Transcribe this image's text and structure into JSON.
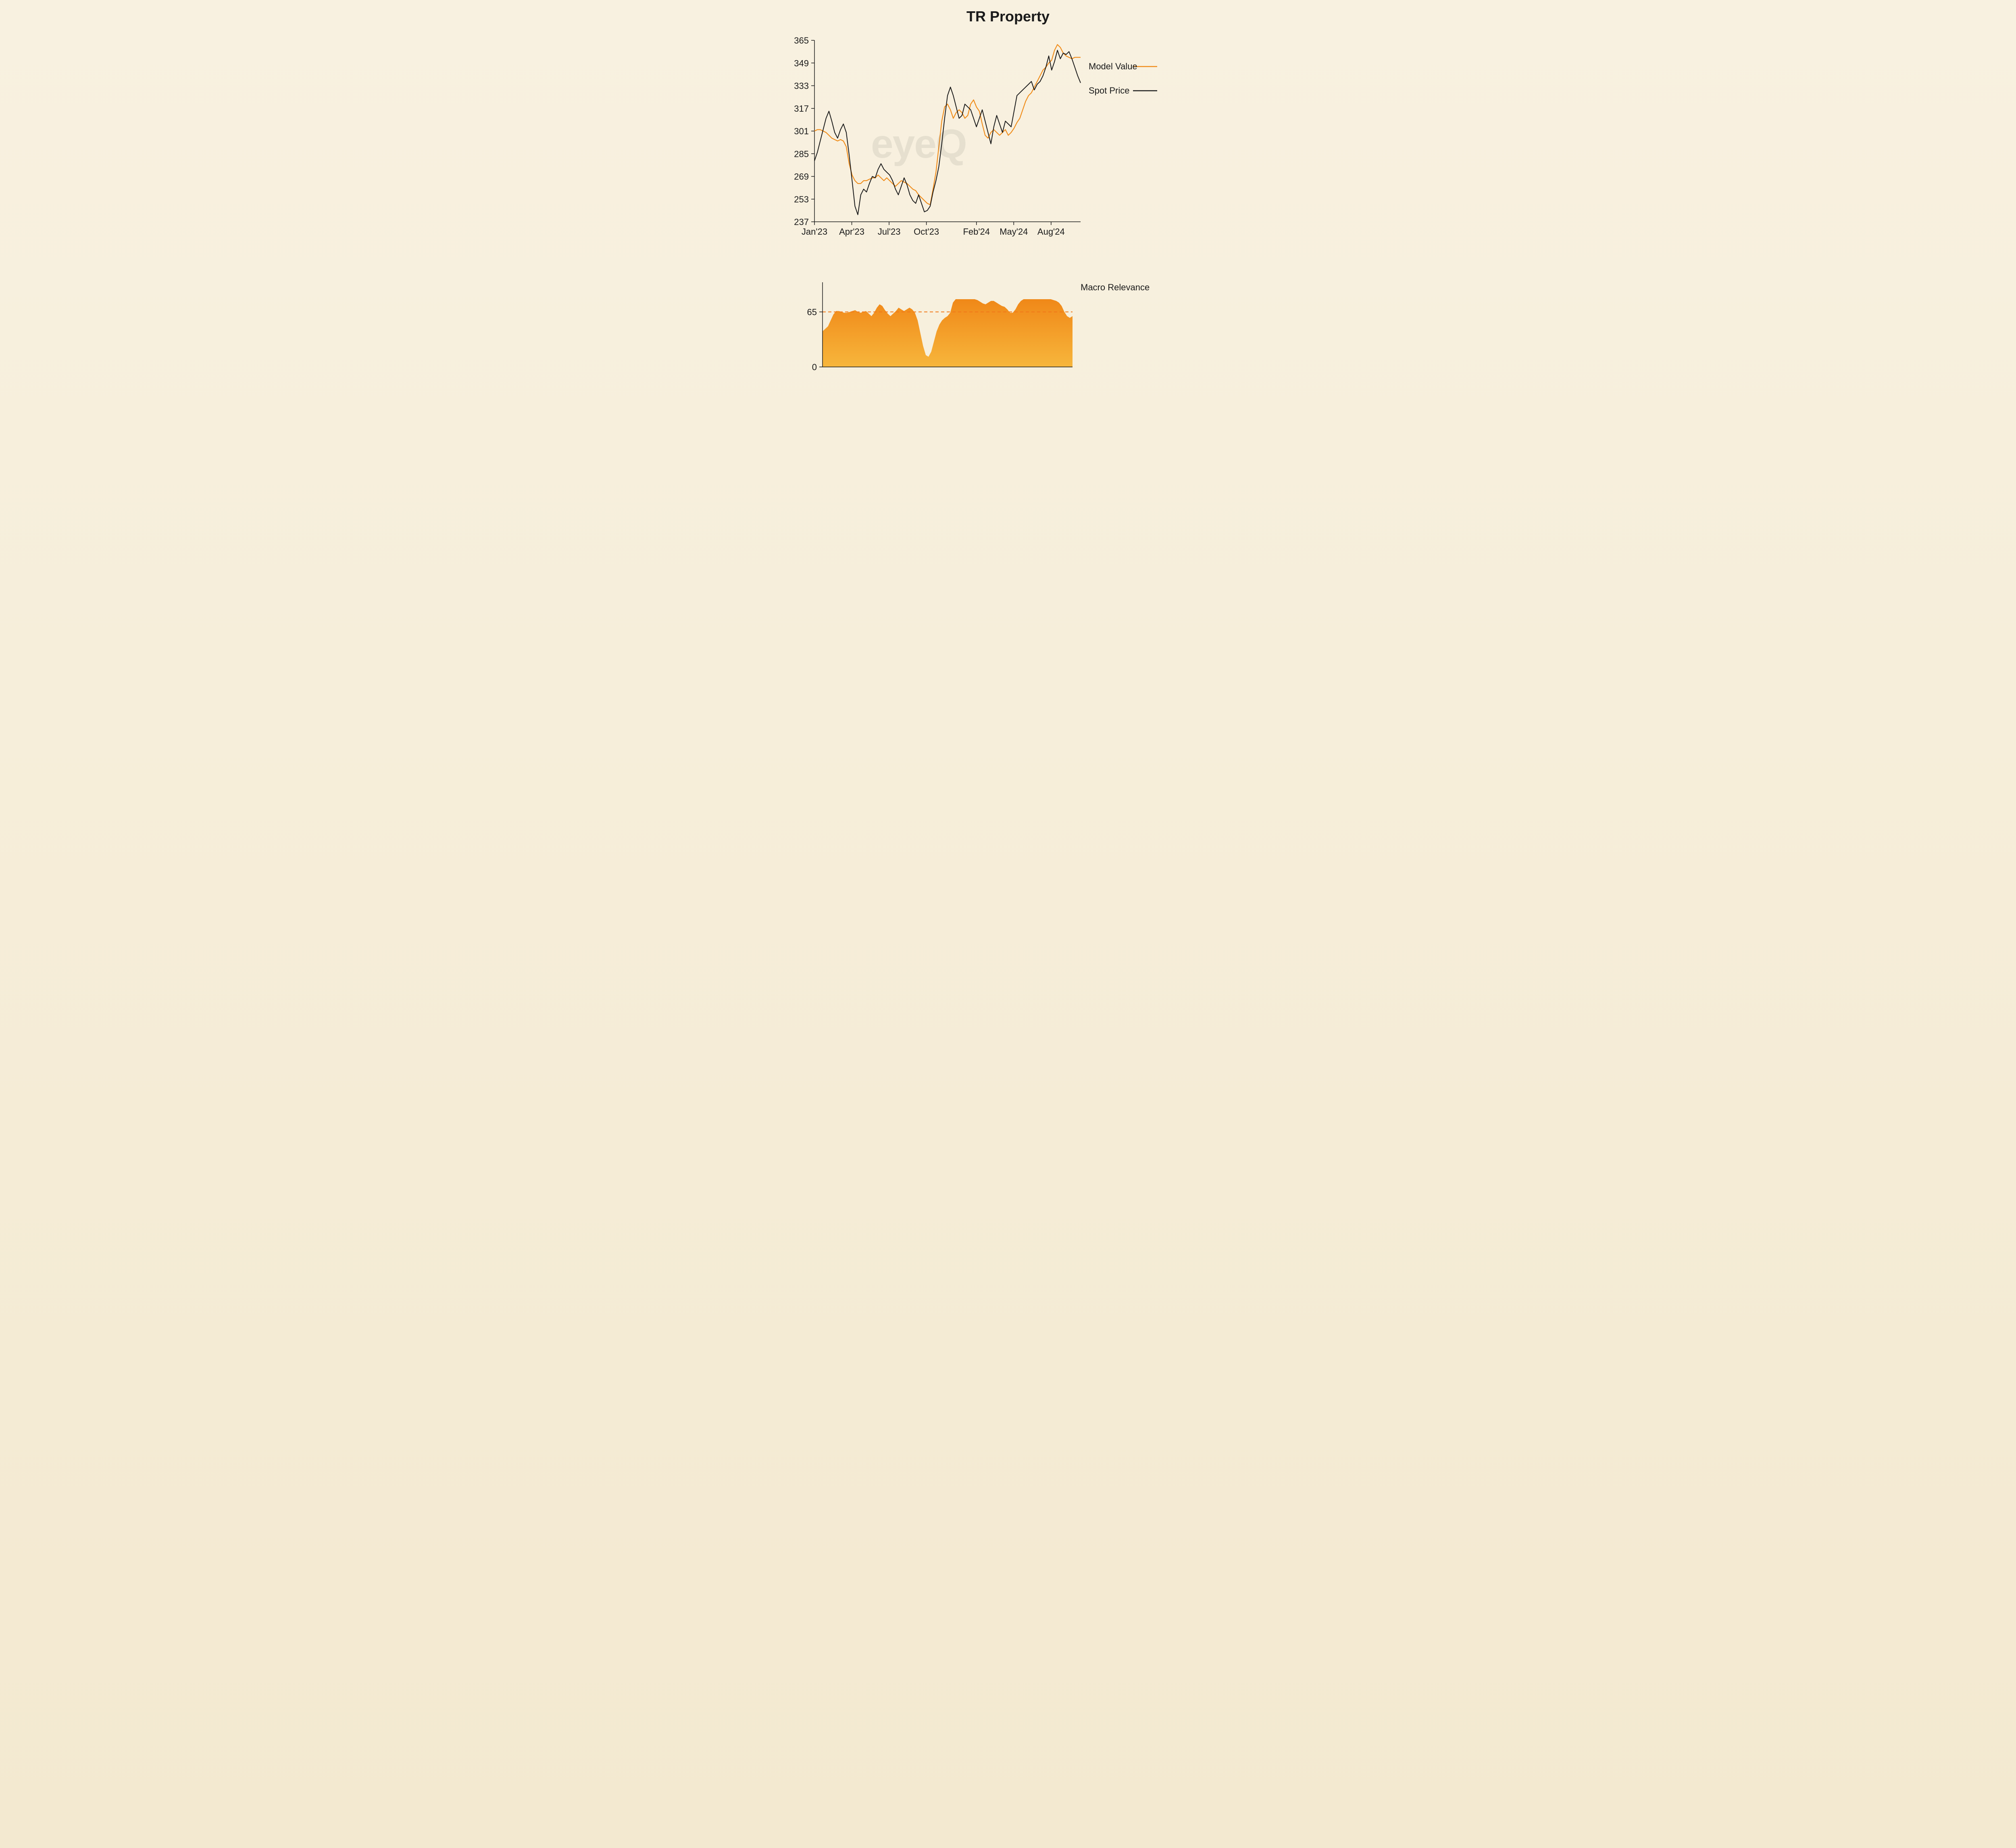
{
  "title": "TR Property",
  "watermark": "eyeQ",
  "background_gradient": [
    "#f8f1e0",
    "#f3e9d0"
  ],
  "legend": {
    "model_value": {
      "label": "Model Value",
      "color": "#f08c1a",
      "line_width": 2.2
    },
    "spot_price": {
      "label": "Spot Price",
      "color": "#1a1a1a",
      "line_width": 2.0
    },
    "macro": {
      "label": "Macro Relevance"
    }
  },
  "main_chart": {
    "type": "line",
    "title_fontsize": 36,
    "label_fontsize": 22,
    "ylim": [
      237,
      365
    ],
    "ytick_labels": [
      "237",
      "253",
      "269",
      "285",
      "301",
      "317",
      "333",
      "349",
      "365"
    ],
    "ytick_values": [
      237,
      253,
      269,
      285,
      301,
      317,
      333,
      349,
      365
    ],
    "xtick_labels": [
      "Jan'23",
      "Apr'23",
      "Jul'23",
      "Oct'23",
      "Feb'24",
      "May'24",
      "Aug'24"
    ],
    "xtick_positions": [
      0,
      12.9,
      25.8,
      38.7,
      56.0,
      68.9,
      81.8
    ],
    "x_count": 93,
    "axis_color": "#1a1a1a",
    "model_value_series": [
      301,
      302,
      302,
      301,
      300,
      298,
      296,
      295,
      294,
      295,
      294,
      290,
      278,
      270,
      266,
      264,
      264,
      266,
      266,
      267,
      268,
      268,
      270,
      268,
      266,
      268,
      266,
      264,
      262,
      264,
      266,
      265,
      264,
      262,
      260,
      259,
      256,
      254,
      252,
      250,
      249,
      260,
      272,
      290,
      308,
      318,
      320,
      316,
      310,
      314,
      316,
      314,
      310,
      312,
      320,
      323,
      318,
      315,
      306,
      298,
      296,
      300,
      302,
      300,
      298,
      300,
      302,
      298,
      300,
      303,
      307,
      310,
      316,
      322,
      326,
      328,
      332,
      336,
      340,
      344,
      346,
      349,
      351,
      358,
      362,
      360,
      356,
      354,
      353,
      352,
      353,
      353,
      353
    ],
    "spot_price_series": [
      280,
      286,
      294,
      302,
      310,
      315,
      308,
      300,
      296,
      302,
      306,
      300,
      284,
      266,
      248,
      242,
      256,
      260,
      258,
      264,
      269,
      268,
      274,
      278,
      274,
      272,
      270,
      266,
      260,
      256,
      262,
      268,
      263,
      256,
      252,
      250,
      256,
      250,
      244,
      245,
      248,
      258,
      266,
      276,
      292,
      310,
      326,
      332,
      326,
      318,
      310,
      312,
      320,
      318,
      316,
      310,
      304,
      310,
      316,
      308,
      300,
      292,
      304,
      312,
      306,
      300,
      308,
      306,
      304,
      315,
      326,
      328,
      330,
      332,
      334,
      336,
      330,
      334,
      336,
      340,
      346,
      354,
      344,
      350,
      358,
      352,
      356,
      355,
      357,
      352,
      346,
      340,
      335
    ]
  },
  "macro_chart": {
    "type": "area",
    "label_fontsize": 22,
    "ylim": [
      0,
      100
    ],
    "ytick_labels": [
      "0",
      "65"
    ],
    "ytick_values": [
      0,
      65
    ],
    "threshold": 65,
    "threshold_color": "#f07818",
    "threshold_dash": "8,6",
    "threshold_width": 2,
    "fill_gradient": [
      "#f08818",
      "#f7b63c"
    ],
    "axis_color": "#1a1a1a",
    "x_count": 93,
    "series": [
      42,
      45,
      48,
      55,
      62,
      66,
      66,
      65,
      64,
      64,
      65,
      66,
      67,
      65,
      64,
      65,
      66,
      63,
      60,
      64,
      70,
      74,
      72,
      67,
      63,
      60,
      63,
      66,
      70,
      68,
      66,
      68,
      70,
      68,
      64,
      55,
      40,
      25,
      14,
      12,
      18,
      30,
      42,
      50,
      55,
      58,
      60,
      64,
      76,
      80,
      80,
      80,
      80,
      80,
      80,
      80,
      80,
      79,
      77,
      75,
      74,
      76,
      78,
      78,
      76,
      74,
      72,
      71,
      68,
      64,
      64,
      68,
      74,
      78,
      80,
      80,
      80,
      80,
      80,
      80,
      80,
      80,
      80,
      80,
      80,
      79,
      78,
      76,
      72,
      65,
      60,
      58,
      60
    ]
  }
}
